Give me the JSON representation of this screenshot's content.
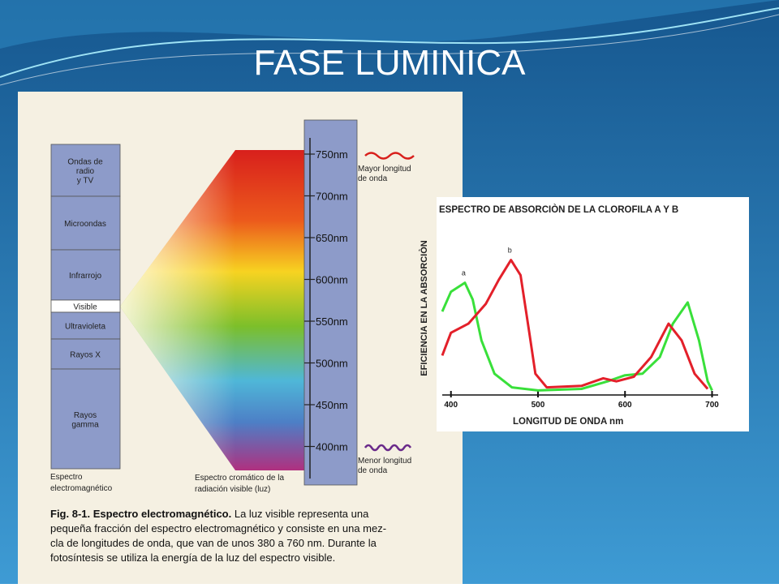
{
  "title": "FASE LUMINICA",
  "figure": {
    "em_bands": [
      [
        "Ondas de",
        "radio",
        "y TV"
      ],
      [
        "Microondas"
      ],
      [
        "Infrarrojo"
      ],
      [
        "Visible"
      ],
      [
        "Ultravioleta"
      ],
      [
        "Rayos X"
      ],
      [
        "Rayos",
        "gamma"
      ]
    ],
    "nm_labels": [
      "750nm",
      "700nm",
      "650nm",
      "600nm",
      "550nm",
      "500nm",
      "450nm",
      "400nm"
    ],
    "long_label": [
      "Mayor longitud",
      "de onda"
    ],
    "short_label": [
      "Menor longitud",
      "de onda"
    ],
    "em_caption": [
      "Espectro",
      "electromagnético"
    ],
    "visible_caption": [
      "Espectro cromático de la",
      "radiación visible (luz)"
    ],
    "caption": {
      "bold": "Fig. 8-1. Espectro electromagnético.",
      "lines": [
        " La luz visible representa una",
        "pequeña fracción del espectro electromagnético y consiste en una mez-",
        "cla de longitudes de onda, que van de unos 380 a 760 nm. Durante la",
        "fotosíntesis se utiliza la energía de la luz del espectro visible."
      ]
    }
  },
  "absorption_chart": {
    "type": "line",
    "title": "ESPECTRO DE ABSORCIÒN DE LA CLOROFILA  A  Y  B",
    "ylabel": "EFICIENCIA EN LA ABSORCIÒN",
    "xlabel": "LONGITUD DE ONDA  nm",
    "xlim": [
      390,
      707
    ],
    "xticks": [
      400,
      500,
      600,
      700
    ],
    "ylim": [
      0,
      100
    ],
    "series": [
      {
        "name": "a",
        "color": "#39e03a",
        "x": [
          390,
          400,
          416,
          425,
          435,
          450,
          470,
          500,
          550,
          580,
          600,
          620,
          640,
          655,
          672,
          685,
          695,
          700
        ],
        "values": [
          55,
          68,
          74,
          63,
          36,
          14,
          5,
          3,
          4,
          9,
          13,
          14,
          25,
          47,
          61,
          36,
          9,
          3
        ]
      },
      {
        "name": "b",
        "color": "#e3202a",
        "x": [
          390,
          400,
          420,
          440,
          455,
          469,
          480,
          490,
          497,
          510,
          550,
          575,
          590,
          610,
          630,
          650,
          665,
          680,
          695
        ],
        "values": [
          26,
          41,
          47,
          60,
          76,
          89,
          79,
          41,
          14,
          5,
          6,
          11,
          9,
          12,
          25,
          47,
          36,
          14,
          4
        ]
      }
    ]
  }
}
